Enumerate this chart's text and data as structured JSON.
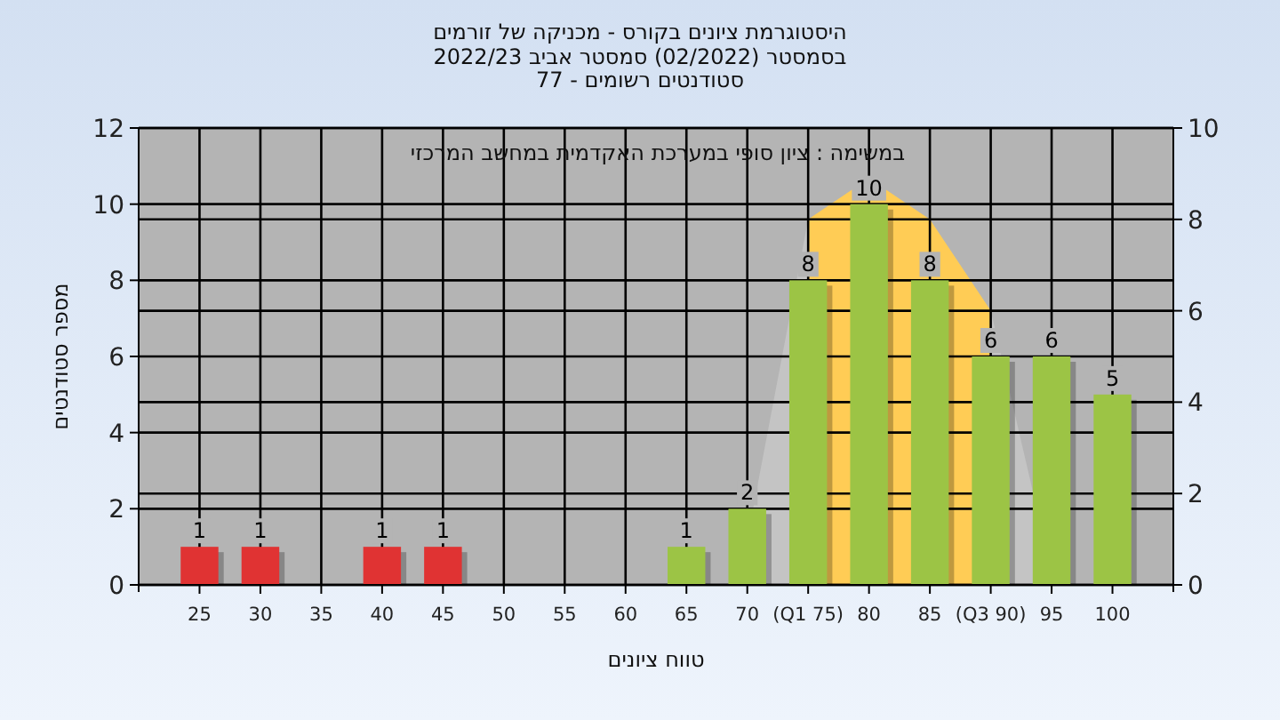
{
  "chart_data": {
    "type": "bar",
    "title": "היסטוגרמת ציונים בקורס - מכניקה של זורמים",
    "subtitle": "בסמסטר  (02/2022)  סמסטר אביב 2022/23\nסטודנטים רשומים - 77",
    "xlabel": "טווח ציונים",
    "ylabel": "מספר סטודנטים",
    "annotations": [
      "במשימה : ציון סופי במערכת האקדמית במחשב המרכזי"
    ],
    "series": [
      {
        "type": "area",
        "axis": "y2",
        "color": "#c4c4c4",
        "x": [
          69,
          70.5,
          75
        ],
        "values": [
          0,
          1.7,
          8
        ]
      },
      {
        "type": "area",
        "axis": "y2",
        "color": "#ffcc55",
        "x": [
          75,
          80,
          85,
          90
        ],
        "values": [
          8,
          8.9,
          8,
          6
        ]
      },
      {
        "type": "area",
        "axis": "y2",
        "color": "#c4c4c4",
        "x": [
          90,
          93.5,
          95
        ],
        "values": [
          6,
          2,
          0
        ]
      },
      {
        "type": "bar",
        "color": "#e03333",
        "x": [
          25,
          30,
          40,
          45
        ],
        "values": [
          1,
          1,
          1,
          1
        ],
        "value_labels": [
          "1",
          "1",
          "1",
          "1"
        ]
      },
      {
        "type": "bar",
        "color": "#9cc445",
        "x": [
          65,
          70,
          75,
          80,
          85,
          90,
          95,
          100
        ],
        "values": [
          1,
          2,
          8,
          10,
          8,
          6,
          6,
          5
        ],
        "value_labels": [
          "1",
          "2",
          "8",
          "10",
          "8",
          "6",
          "6",
          "5"
        ]
      }
    ],
    "xlim": [
      20,
      105
    ],
    "xticks": [
      25,
      30,
      35,
      40,
      45,
      50,
      55,
      60,
      65,
      70,
      {
        "value": 75,
        "label": "(Q1 75)"
      },
      80,
      85,
      {
        "value": 90,
        "label": "(Q3 90)"
      },
      95,
      100
    ],
    "ylim": [
      0,
      12
    ],
    "yticks": [
      0,
      2,
      4,
      6,
      8,
      10,
      12
    ],
    "y2lim": [
      0,
      10
    ],
    "y2ticks": [
      0,
      2,
      4,
      6,
      8,
      10
    ],
    "grid": true
  }
}
